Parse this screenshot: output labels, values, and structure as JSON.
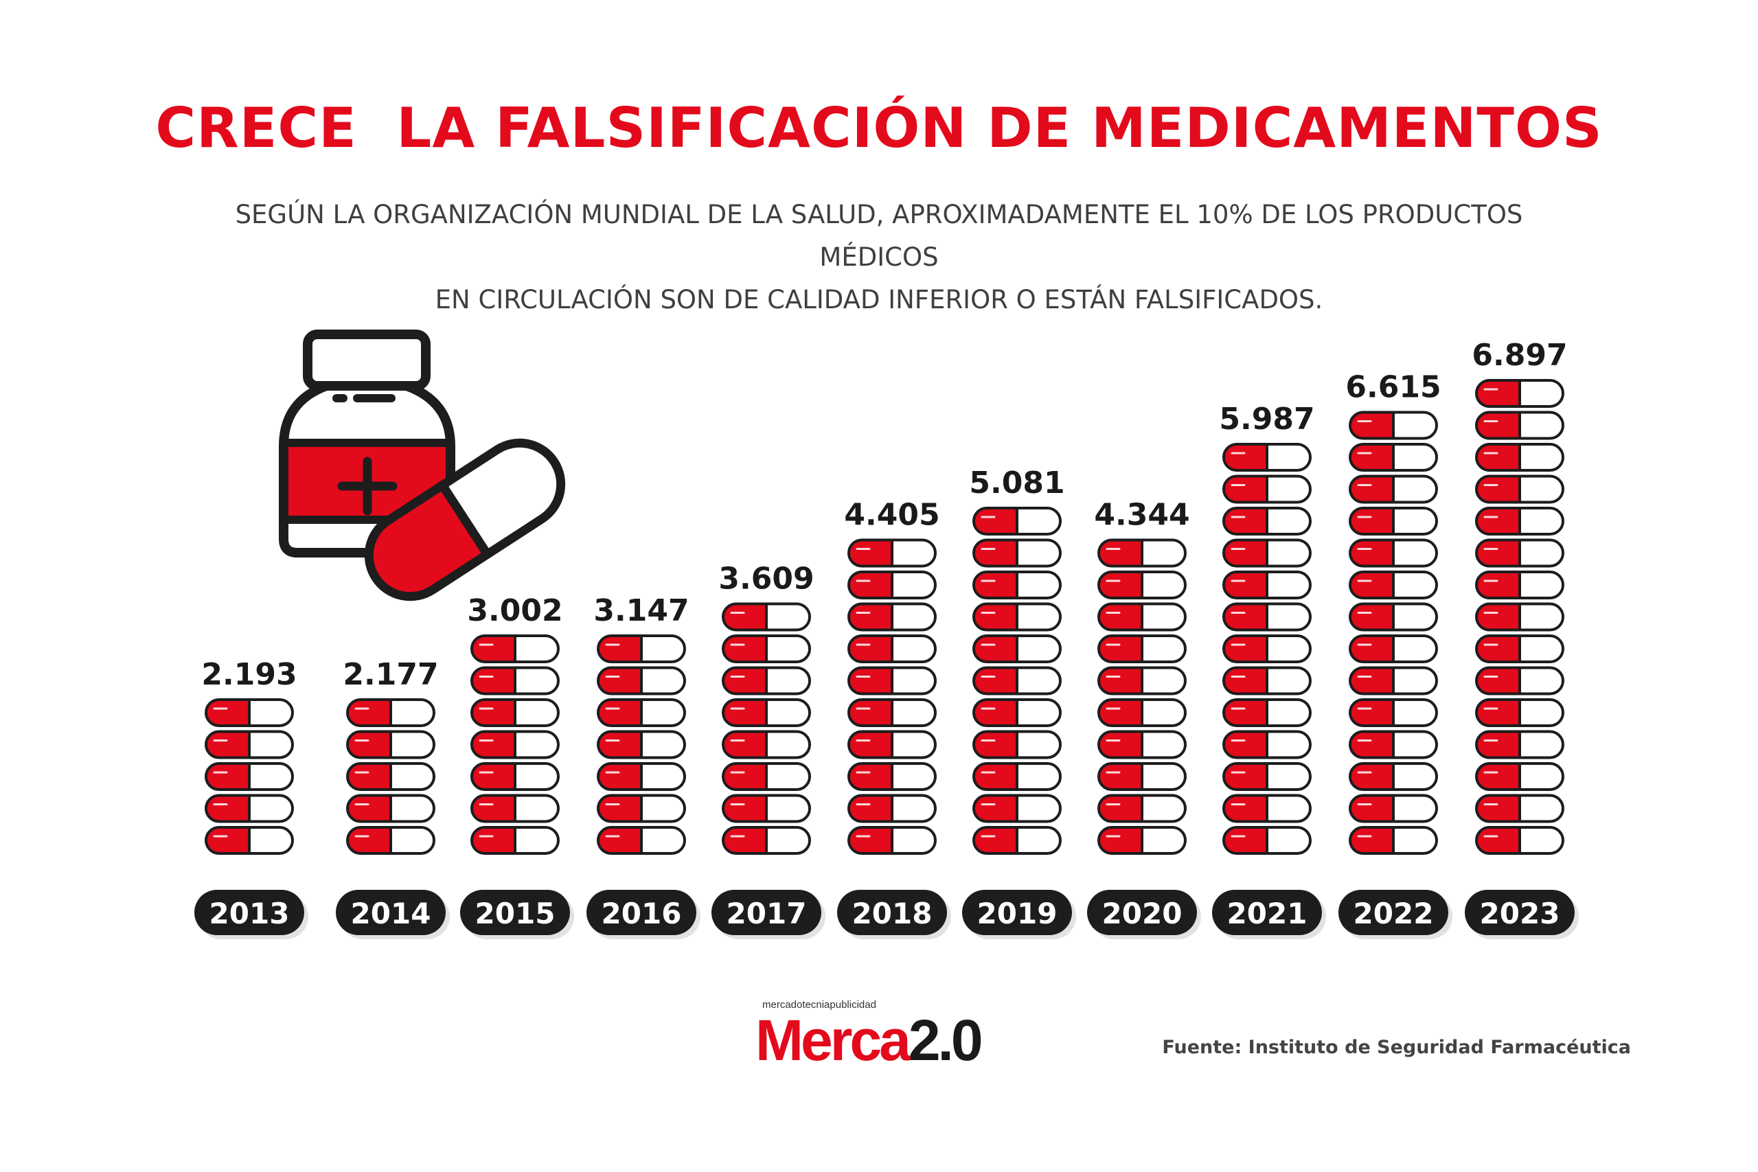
{
  "header": {
    "title": "CRECE  LA FALSIFICACIÓN DE MEDICAMENTOS",
    "subtitle_line1": "SEGÚN LA ORGANIZACIÓN MUNDIAL DE LA SALUD, APROXIMADAMENTE EL 10% DE LOS PRODUCTOS MÉDICOS",
    "subtitle_line2": "EN CIRCULACIÓN SON DE CALIDAD INFERIOR O ESTÁN FALSIFICADOS."
  },
  "chart_data": {
    "type": "bar",
    "categories": [
      "2013",
      "2014",
      "2015",
      "2016",
      "2017",
      "2018",
      "2019",
      "2020",
      "2021",
      "2022",
      "2023"
    ],
    "values": [
      2193,
      2177,
      3002,
      3147,
      3609,
      4405,
      5081,
      4344,
      5987,
      6615,
      6897
    ],
    "value_labels": [
      "2.193",
      "2.177",
      "3.002",
      "3.147",
      "3.609",
      "4.405",
      "5.081",
      "4.344",
      "5.987",
      "6.615",
      "6.897"
    ],
    "pill_counts": [
      5,
      5,
      7,
      7,
      8,
      10,
      11,
      10,
      13,
      14,
      15
    ],
    "title": "CRECE  LA FALSIFICACIÓN DE MEDICAMENTOS",
    "xlabel": "",
    "ylabel": "",
    "colors": {
      "red": "#e30a1c",
      "dark": "#1d1d1d",
      "white": "#ffffff"
    }
  },
  "logo": {
    "tagline": "mercadotecniapublicidad",
    "brand_red": "Merca",
    "brand_dark": "2.0"
  },
  "footer": {
    "source": "Fuente: Instituto de Seguridad Farmacéutica"
  },
  "icons": [
    "medicine-bottle-icon",
    "capsule-icon"
  ]
}
